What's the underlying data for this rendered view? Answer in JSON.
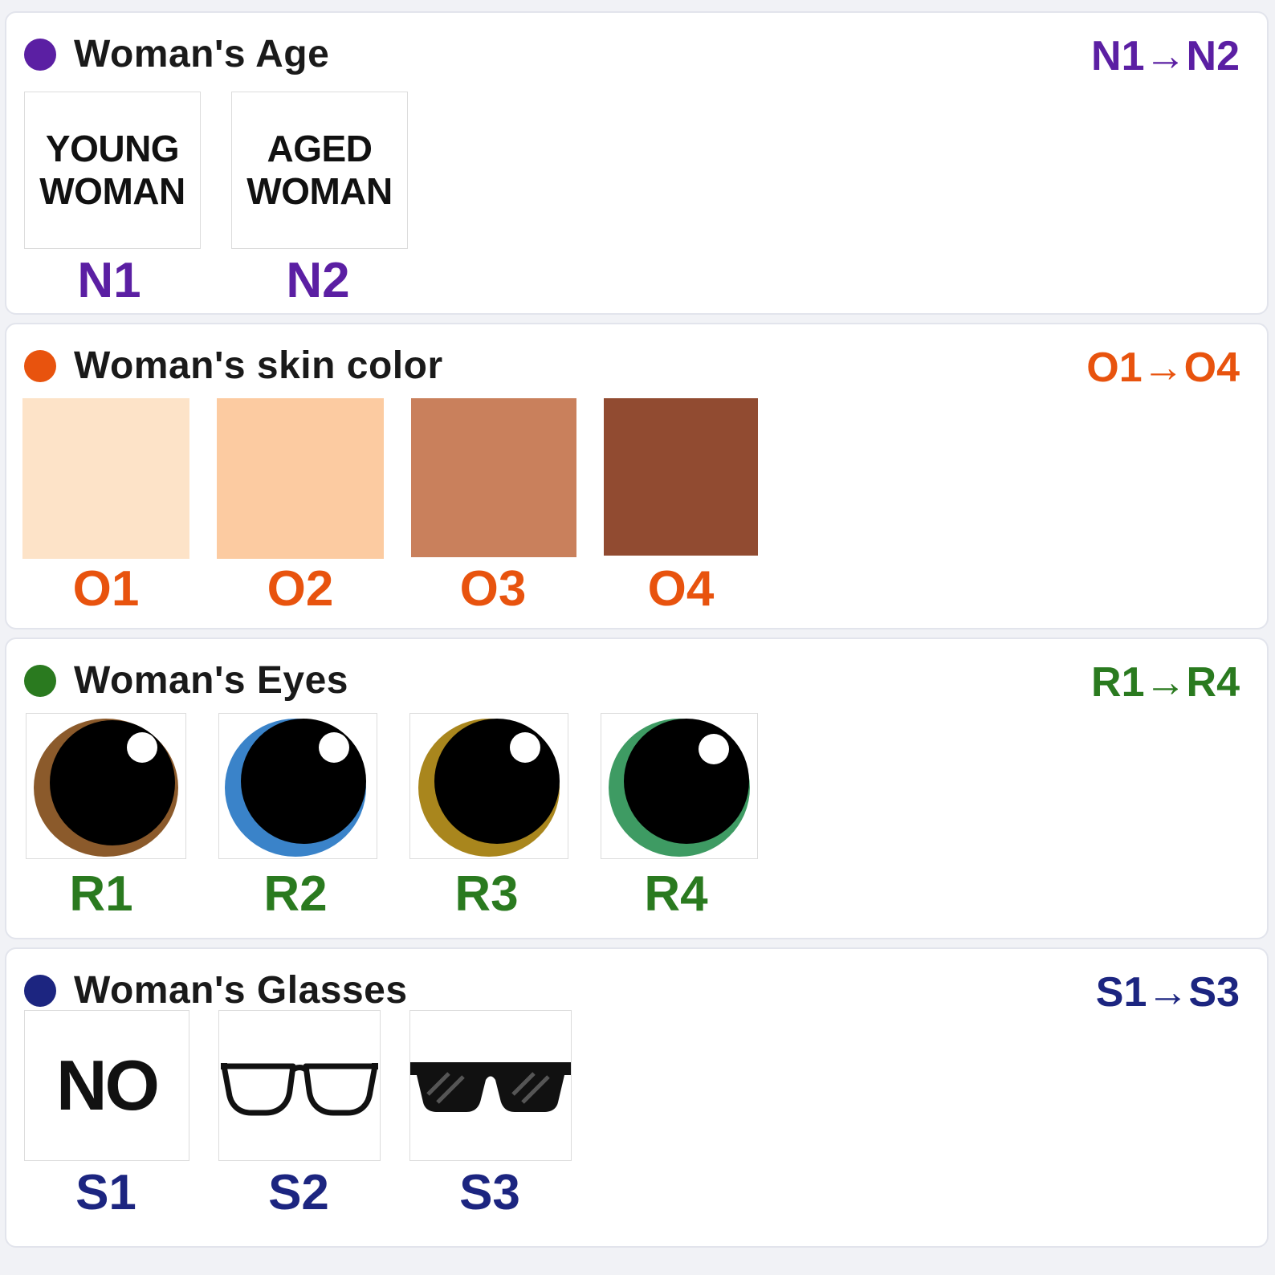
{
  "sections": [
    {
      "title": "Woman's Age",
      "range": "N1→N2",
      "color": "#5b1fa3",
      "items": [
        {
          "code": "N1",
          "line1": "YOUNG",
          "line2": "WOMAN"
        },
        {
          "code": "N2",
          "line1": "AGED",
          "line2": "WOMAN"
        }
      ]
    },
    {
      "title": "Woman's skin color",
      "range": "O1→O4",
      "color": "#e8530e",
      "items": [
        {
          "code": "O1",
          "swatch": "#fde3c8"
        },
        {
          "code": "O2",
          "swatch": "#fccba1"
        },
        {
          "code": "O3",
          "swatch": "#c9805c"
        },
        {
          "code": "O4",
          "swatch": "#914b31"
        }
      ]
    },
    {
      "title": "Woman's Eyes",
      "range": "R1→R4",
      "color": "#2a7a1f",
      "items": [
        {
          "code": "R1",
          "iris": "#8b5a2b",
          "icon": "brown-eye-icon"
        },
        {
          "code": "R2",
          "iris": "#3a83c9",
          "icon": "blue-eye-icon"
        },
        {
          "code": "R3",
          "iris": "#a9861d",
          "icon": "hazel-eye-icon"
        },
        {
          "code": "R4",
          "iris": "#3e9b63",
          "icon": "green-eye-icon"
        }
      ]
    },
    {
      "title": "Woman's Glasses",
      "range": "S1→S3",
      "color": "#1c2580",
      "items": [
        {
          "code": "S1",
          "label": "NO",
          "icon": "no-glasses"
        },
        {
          "code": "S2",
          "icon": "eyeglasses-icon"
        },
        {
          "code": "S3",
          "icon": "sunglasses-icon"
        }
      ]
    }
  ]
}
